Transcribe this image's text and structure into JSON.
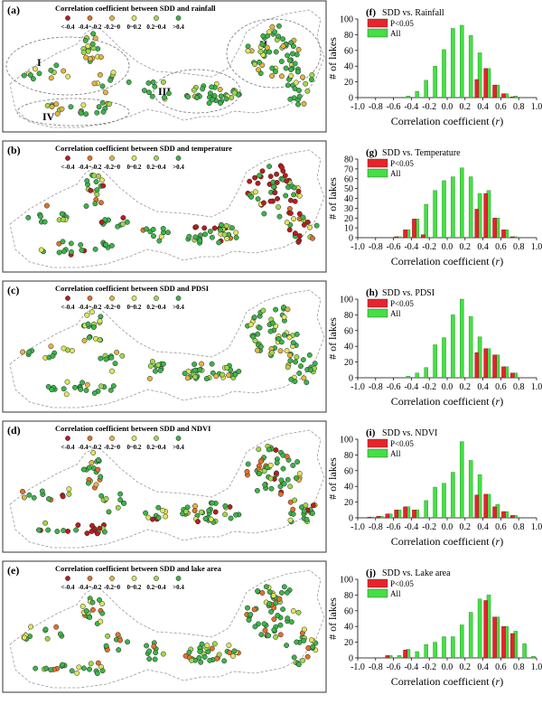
{
  "legend_classes": [
    "<-0.4",
    "-0.4~-0.2",
    "-0.2~0",
    "0~0.2",
    "0.2~0.4",
    ">0.4"
  ],
  "legend_colors": [
    "#b81d1d",
    "#e3702a",
    "#e4b43c",
    "#dfe65a",
    "#9fd84a",
    "#3cb44a"
  ],
  "maps": [
    {
      "panel": "(a)",
      "title": "Correlation coefficient between SDD and rainfall",
      "zones": [
        "I",
        "II",
        "III",
        "IV"
      ]
    },
    {
      "panel": "(b)",
      "title": "Correlation coefficient between SDD and temperature",
      "zones": []
    },
    {
      "panel": "(c)",
      "title": "Correlation coefficient between SDD and PDSI",
      "zones": []
    },
    {
      "panel": "(d)",
      "title": "Correlation coefficient between SDD and NDVI",
      "zones": []
    },
    {
      "panel": "(e)",
      "title": "Correlation coefficient between SDD and lake area",
      "zones": []
    }
  ],
  "legend_series": [
    "P<0.05",
    "All"
  ],
  "series_colors": {
    "sig": "#e8232a",
    "all": "#44e044"
  },
  "chart_data": [
    {
      "type": "bar",
      "panel": "(f)",
      "title": "SDD vs. Rainfall",
      "xlabel": "Correlation coefficient (r)",
      "ylabel": "# of lakes",
      "xticks": [
        "-1.0",
        "-0.8",
        "-0.6",
        "-0.4",
        "-0.2",
        "0.0",
        "0.2",
        "0.4",
        "0.6",
        "0.8",
        "1.0"
      ],
      "ylim": [
        0,
        100
      ],
      "yticks": [
        "0",
        "20",
        "40",
        "60",
        "80",
        "100"
      ],
      "bin_width": 0.1,
      "x": [
        -0.95,
        -0.85,
        -0.75,
        -0.65,
        -0.55,
        -0.45,
        -0.35,
        -0.25,
        -0.15,
        -0.05,
        0.05,
        0.15,
        0.25,
        0.35,
        0.45,
        0.55,
        0.65,
        0.75,
        0.85,
        0.95
      ],
      "series": [
        {
          "name": "P<0.05",
          "values": [
            0,
            0,
            0,
            0,
            0,
            0,
            0,
            0,
            0,
            0,
            0,
            0,
            0,
            23,
            37,
            16,
            5,
            1,
            0,
            0
          ]
        },
        {
          "name": "All",
          "values": [
            0,
            0,
            0,
            0,
            0,
            2,
            8,
            22,
            40,
            61,
            88,
            92,
            79,
            57,
            37,
            16,
            5,
            2,
            0,
            0
          ]
        }
      ]
    },
    {
      "type": "bar",
      "panel": "(g)",
      "title": "SDD vs. Temperature",
      "xlabel": "Correlation coefficient (r)",
      "ylabel": "# of lakes",
      "xticks": [
        "-1.0",
        "-0.8",
        "-0.6",
        "-0.4",
        "-0.2",
        "0.0",
        "0.2",
        "0.4",
        "0.6",
        "0.8",
        "1.0"
      ],
      "ylim": [
        0,
        80
      ],
      "yticks": [
        "0",
        "10",
        "20",
        "30",
        "40",
        "50",
        "60",
        "70",
        "80"
      ],
      "bin_width": 0.1,
      "x": [
        -0.95,
        -0.85,
        -0.75,
        -0.65,
        -0.55,
        -0.45,
        -0.35,
        -0.25,
        -0.15,
        -0.05,
        0.05,
        0.15,
        0.25,
        0.35,
        0.45,
        0.55,
        0.65,
        0.75,
        0.85,
        0.95
      ],
      "series": [
        {
          "name": "P<0.05",
          "values": [
            0,
            0,
            0,
            0,
            1,
            8,
            19,
            3,
            0,
            0,
            0,
            0,
            0,
            29,
            45,
            20,
            8,
            1,
            0,
            0
          ]
        },
        {
          "name": "All",
          "values": [
            0,
            0,
            0,
            0,
            1,
            8,
            19,
            34,
            48,
            58,
            62,
            71,
            62,
            45,
            48,
            20,
            8,
            1,
            0,
            0
          ]
        }
      ]
    },
    {
      "type": "bar",
      "panel": "(h)",
      "title": "SDD vs. PDSI",
      "xlabel": "Correlation coefficient (r)",
      "ylabel": "# of lakes",
      "xticks": [
        "-1.0",
        "-0.8",
        "-0.6",
        "-0.4",
        "-0.2",
        "0.0",
        "0.2",
        "0.4",
        "0.6",
        "0.8",
        "1.0"
      ],
      "ylim": [
        0,
        100
      ],
      "yticks": [
        "0",
        "20",
        "40",
        "60",
        "80",
        "100"
      ],
      "bin_width": 0.1,
      "x": [
        -0.95,
        -0.85,
        -0.75,
        -0.65,
        -0.55,
        -0.45,
        -0.35,
        -0.25,
        -0.15,
        -0.05,
        0.05,
        0.15,
        0.25,
        0.35,
        0.45,
        0.55,
        0.65,
        0.75,
        0.85,
        0.95
      ],
      "series": [
        {
          "name": "P<0.05",
          "values": [
            0,
            0,
            0,
            0,
            0,
            0,
            0,
            0,
            0,
            0,
            0,
            0,
            0,
            32,
            37,
            29,
            14,
            6,
            0,
            0
          ]
        },
        {
          "name": "All",
          "values": [
            0,
            0,
            0,
            0,
            0,
            2,
            6,
            13,
            42,
            51,
            80,
            100,
            78,
            52,
            37,
            29,
            14,
            6,
            0,
            0
          ]
        }
      ]
    },
    {
      "type": "bar",
      "panel": "(i)",
      "title": "SDD vs. NDVI",
      "xlabel": "Correlation coefficient (r)",
      "ylabel": "# of lakes",
      "xticks": [
        "-1.0",
        "-0.8",
        "-0.6",
        "-0.4",
        "-0.2",
        "0.0",
        "0.2",
        "0.4",
        "0.6",
        "0.8",
        "1.0"
      ],
      "ylim": [
        0,
        100
      ],
      "yticks": [
        "0",
        "20",
        "40",
        "60",
        "80",
        "100"
      ],
      "bin_width": 0.1,
      "x": [
        -0.95,
        -0.85,
        -0.75,
        -0.65,
        -0.55,
        -0.45,
        -0.35,
        -0.25,
        -0.15,
        -0.05,
        0.05,
        0.15,
        0.25,
        0.35,
        0.45,
        0.55,
        0.65,
        0.75,
        0.85,
        0.95
      ],
      "series": [
        {
          "name": "P<0.05",
          "values": [
            0,
            1,
            2,
            5,
            10,
            14,
            10,
            0,
            0,
            0,
            0,
            0,
            0,
            29,
            30,
            14,
            8,
            3,
            0,
            0
          ]
        },
        {
          "name": "All",
          "values": [
            0,
            1,
            2,
            5,
            10,
            14,
            10,
            22,
            39,
            44,
            58,
            97,
            73,
            55,
            30,
            17,
            8,
            3,
            0,
            0
          ]
        }
      ]
    },
    {
      "type": "bar",
      "panel": "(j)",
      "title": "SDD vs. Lake area",
      "xlabel": "Correlation coefficient (r)",
      "ylabel": "# of lakes",
      "xticks": [
        "-1.0",
        "-0.8",
        "-0.6",
        "-0.4",
        "-0.2",
        "0.0",
        "0.2",
        "0.4",
        "0.6",
        "0.8",
        "1.0"
      ],
      "ylim": [
        0,
        100
      ],
      "yticks": [
        "0",
        "20",
        "40",
        "60",
        "80",
        "100"
      ],
      "bin_width": 0.1,
      "x": [
        -0.95,
        -0.85,
        -0.75,
        -0.65,
        -0.55,
        -0.45,
        -0.35,
        -0.25,
        -0.15,
        -0.05,
        0.05,
        0.15,
        0.25,
        0.35,
        0.45,
        0.55,
        0.65,
        0.75,
        0.85,
        0.95
      ],
      "series": [
        {
          "name": "P<0.05",
          "values": [
            0,
            0,
            0,
            3,
            0,
            10,
            0,
            0,
            0,
            0,
            0,
            0,
            0,
            0,
            73,
            52,
            40,
            31,
            0,
            0
          ]
        },
        {
          "name": "All",
          "values": [
            0,
            0,
            0,
            3,
            3,
            11,
            8,
            17,
            20,
            27,
            27,
            42,
            58,
            75,
            80,
            52,
            40,
            34,
            18,
            2
          ]
        }
      ]
    }
  ]
}
